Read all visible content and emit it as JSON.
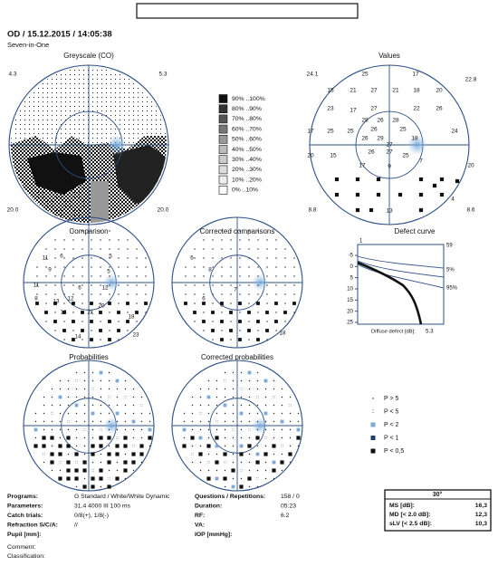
{
  "header": {
    "title": "OD / 15.12.2015 / 14:05:38",
    "subtitle": "Seven-in-One"
  },
  "greyscale": {
    "title": "Greyscale (CO)",
    "corner_labels": [
      "4.3",
      "5.3",
      "20.0",
      "20.0"
    ],
    "legend": [
      "90% ..100%",
      "80% ..90%",
      "70% ..80%",
      "60% ..70%",
      "50% ..60%",
      "40% ..50%",
      "30% ..40%",
      "20% ..30%",
      "10% ..20%",
      "0% ..10%"
    ]
  },
  "values": {
    "title": "Values",
    "corner_labels": [
      "24.1",
      "22.8",
      "8.8",
      "8.6"
    ],
    "numbers": [
      25,
      17,
      15,
      21,
      27,
      21,
      18,
      20,
      23,
      17,
      27,
      22,
      26,
      28,
      26,
      28,
      24,
      17,
      25,
      25,
      26,
      25,
      26,
      29,
      18,
      27,
      20,
      15,
      26,
      27,
      25,
      17,
      9,
      7,
      20,
      4,
      13
    ]
  },
  "comparison": {
    "title": "Comparison",
    "numbers": [
      11,
      6,
      5,
      9,
      5,
      11,
      6,
      12,
      8,
      13,
      12,
      13,
      21,
      20,
      18,
      23,
      14
    ]
  },
  "corrected_comparisons": {
    "title": "Corrected comparisons",
    "numbers": [
      6,
      8,
      7,
      8,
      6,
      18
    ]
  },
  "defect_curve": {
    "title": "Defect curve",
    "x_labels": [
      1,
      59
    ],
    "y_labels": [
      -5,
      0,
      5,
      10,
      15,
      20,
      25
    ],
    "band_labels": [
      "5%",
      "95%"
    ],
    "footer": "Diffuse defect [dB]:",
    "diffuse_defect": "5.3"
  },
  "probabilities": {
    "title": "Probabilities"
  },
  "corrected_probabilities": {
    "title": "Corrected probabilities"
  },
  "probability_legend": [
    "P > 5",
    "P < 5",
    "P < 2",
    "P < 1",
    "P < 0,5"
  ],
  "parameters": [
    {
      "label": "Programs:",
      "value": "G Standard / White/White Dynamic"
    },
    {
      "label": "Parameters:",
      "value": "31.4 4000 III 100 ms"
    },
    {
      "label": "Catch trials:",
      "value": "0/8(+), 1/8(-)"
    },
    {
      "label": "Refraction S/C/A:",
      "value": "//"
    },
    {
      "label": "Pupil [mm]:"
    }
  ],
  "test_info": [
    {
      "label": "Questions / Repetitions:",
      "value": "158 / 0"
    },
    {
      "label": "Duration:",
      "value": "05:23"
    },
    {
      "label": "RF:",
      "value": "6.2"
    },
    {
      "label": "VA:"
    },
    {
      "label": "IOP [mmHg]:"
    }
  ],
  "indices": {
    "header": "30°",
    "rows": [
      {
        "label": "MS [dB]:",
        "value": "16,3"
      },
      {
        "label": "MD [< 2.0 dB]:",
        "value": "12,3"
      },
      {
        "label": "sLV [< 2.5 dB]:",
        "value": "10,3"
      }
    ]
  },
  "comment": [
    "Comment:",
    "Classification:"
  ]
}
